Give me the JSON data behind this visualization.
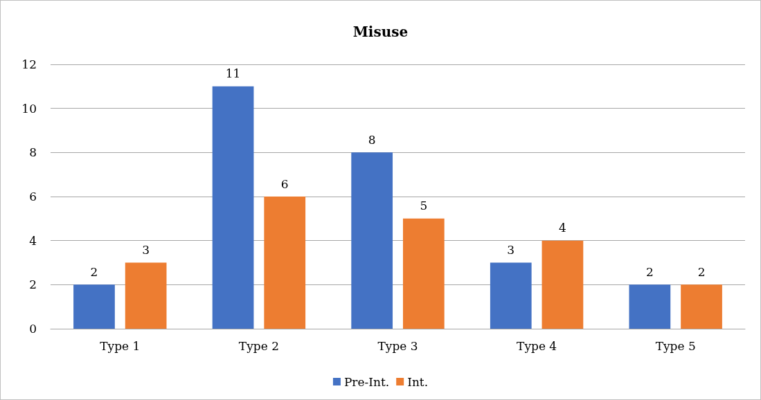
{
  "chart_data": {
    "type": "bar",
    "title": "Misuse",
    "categories": [
      "Type 1",
      "Type 2",
      "Type 3",
      "Type 4",
      "Type 5"
    ],
    "series": [
      {
        "name": "Pre-Int.",
        "color": "#4472c4",
        "values": [
          2,
          11,
          8,
          3,
          2
        ]
      },
      {
        "name": "Int.",
        "color": "#ed7d31",
        "values": [
          3,
          6,
          5,
          4,
          2
        ]
      }
    ],
    "ylim": [
      0,
      12
    ],
    "yticks": [
      0,
      2,
      4,
      6,
      8,
      10,
      12
    ],
    "grid": "y",
    "legend": "bottom",
    "data_labels": true
  }
}
